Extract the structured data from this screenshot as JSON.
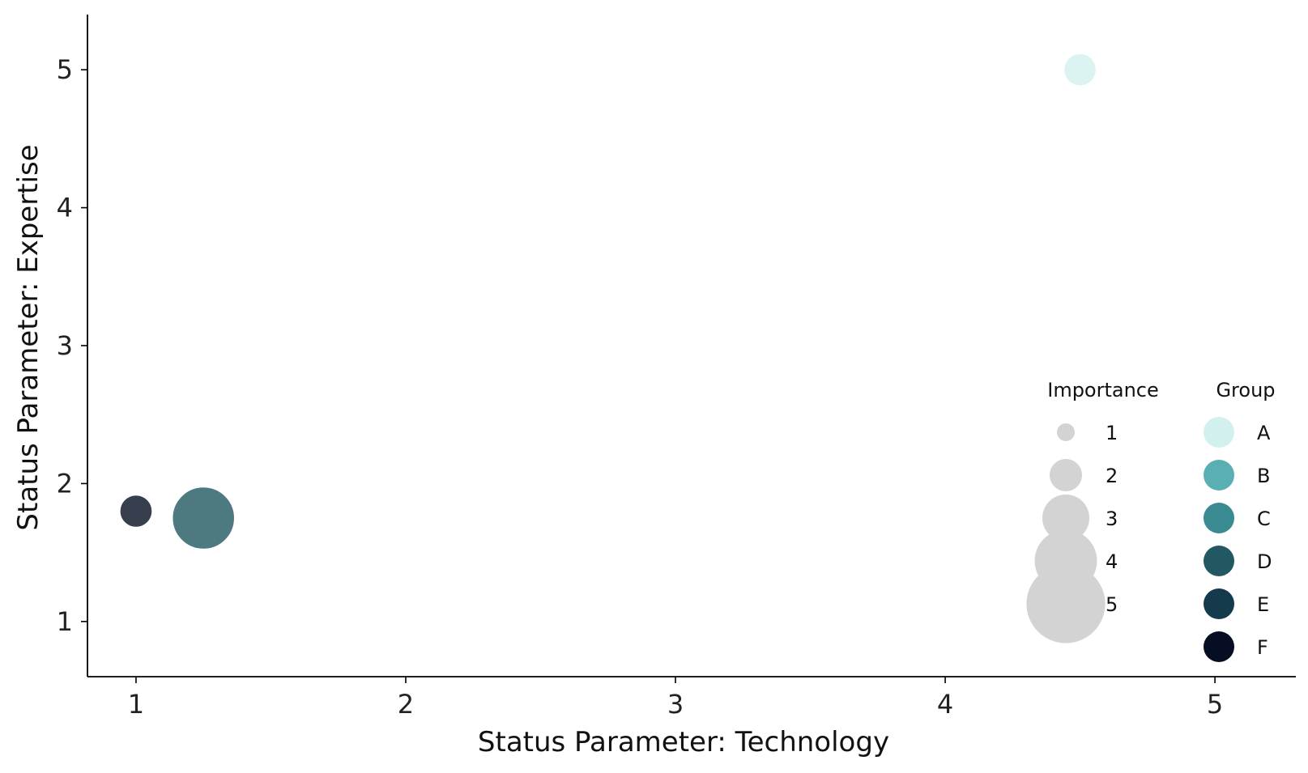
{
  "chart_data": {
    "type": "scatter",
    "title": "",
    "xlabel": "Status Parameter: Technology",
    "ylabel": "Status Parameter: Expertise",
    "xlim": [
      0.82,
      5.3
    ],
    "ylim": [
      0.6,
      5.4
    ],
    "xticks": [
      1,
      2,
      3,
      4,
      5
    ],
    "yticks": [
      1,
      2,
      3,
      4,
      5
    ],
    "grid": false,
    "legend_position": "lower-right",
    "points": [
      {
        "x": 4.5,
        "y": 5.0,
        "group": "A",
        "importance": 2
      },
      {
        "x": 1.0,
        "y": 1.8,
        "group": "F",
        "importance": 2
      },
      {
        "x": 1.25,
        "y": 1.75,
        "group": "D",
        "importance": 4
      }
    ],
    "size_legend": {
      "title": "Importance",
      "values": [
        1,
        2,
        3,
        4,
        5
      ],
      "labels": [
        "1",
        "2",
        "3",
        "4",
        "5"
      ],
      "color": "#d3d3d3"
    },
    "group_legend": {
      "title": "Group",
      "groups": [
        {
          "name": "A",
          "color": "#d2f0ee"
        },
        {
          "name": "B",
          "color": "#5aafb2"
        },
        {
          "name": "C",
          "color": "#3a8a91"
        },
        {
          "name": "D",
          "color": "#215862"
        },
        {
          "name": "E",
          "color": "#143a4b"
        },
        {
          "name": "F",
          "color": "#050e22"
        }
      ]
    }
  }
}
